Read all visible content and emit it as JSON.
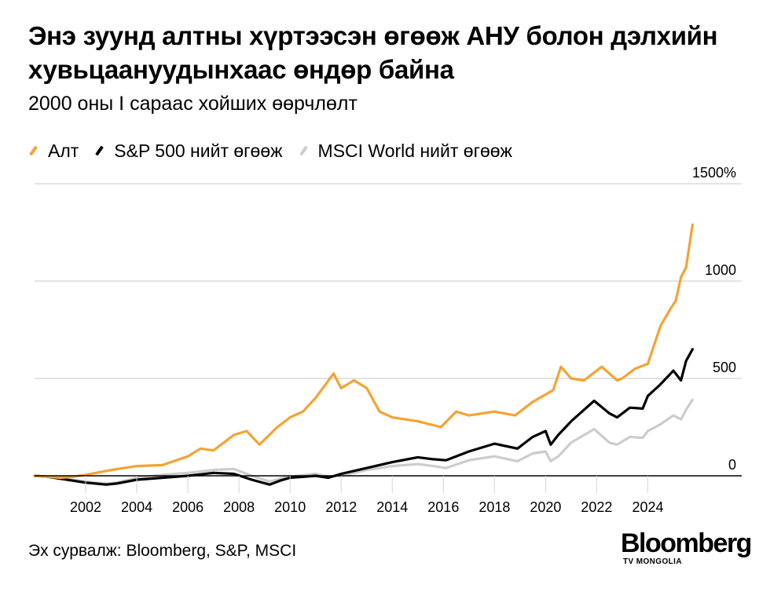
{
  "header": {
    "title": "Энэ зуунд алтны хүртээсэн өгөөж АНУ болон дэлхийн хувьцаануудынхаас өндөр байна",
    "subtitle": "2000 оны I сараас хойших өөрчлөлт"
  },
  "legend": {
    "items": [
      {
        "label": "Алт",
        "color": "#F5A332"
      },
      {
        "label": "S&P 500 нийт өгөөж",
        "color": "#000000"
      },
      {
        "label": "MSCI World нийт өгөөж",
        "color": "#CCCCCC"
      }
    ]
  },
  "footer": {
    "source": "Эх сурвалж: Bloomberg, S&P, MSCI",
    "logo_word": "Bloomberg",
    "logo_sub": "TV MONGOLIA"
  },
  "colors": {
    "gold": "#F5A332",
    "sp500": "#000000",
    "msci": "#CCCCCC",
    "grid": "#D4D4D4",
    "zero_line": "#000000"
  },
  "chart_data": {
    "type": "line",
    "title": "Энэ зуунд алтны хүртээсэн өгөөж АНУ болон дэлхийн хувьцаануудынхаас өндөр байна",
    "subtitle": "2000 оны I сараас хойших өөрчлөлт",
    "xlabel": "",
    "ylabel": "",
    "x_range": [
      2000,
      2025.8
    ],
    "ylim": [
      -100,
      1500
    ],
    "y_ticks": [
      {
        "value": 0,
        "label": "0"
      },
      {
        "value": 500,
        "label": "500"
      },
      {
        "value": 1000,
        "label": "1000"
      },
      {
        "value": 1500,
        "label": "1500%"
      }
    ],
    "x_ticks": [
      {
        "value": 2002,
        "label": "2002"
      },
      {
        "value": 2004,
        "label": "2004"
      },
      {
        "value": 2006,
        "label": "2006"
      },
      {
        "value": 2008,
        "label": "2008"
      },
      {
        "value": 2010,
        "label": "2010"
      },
      {
        "value": 2012,
        "label": "2012"
      },
      {
        "value": 2014,
        "label": "2014"
      },
      {
        "value": 2016,
        "label": "2016"
      },
      {
        "value": 2018,
        "label": "2018"
      },
      {
        "value": 2020,
        "label": "2020"
      },
      {
        "value": 2022,
        "label": "2022"
      },
      {
        "value": 2024,
        "label": "2024"
      }
    ],
    "grid": "horizontal",
    "legend_position": "top-left",
    "series": [
      {
        "name": "MSCI World нийт өгөөж",
        "color": "#CCCCCC",
        "x": [
          2000,
          2000.5,
          2001,
          2001.5,
          2002,
          2002.8,
          2003.2,
          2004,
          2005,
          2006,
          2007,
          2007.8,
          2008.5,
          2009.2,
          2009.6,
          2010,
          2011,
          2011.5,
          2012,
          2013,
          2014,
          2015,
          2015.6,
          2016.1,
          2017,
          2018,
          2018.9,
          2019.5,
          2020,
          2020.2,
          2020.5,
          2021,
          2021.9,
          2022.5,
          2022.8,
          2023.3,
          2023.8,
          2024,
          2024.5,
          2025,
          2025.3,
          2025.5,
          2025.75
        ],
        "values": [
          0,
          -5,
          -15,
          -20,
          -30,
          -40,
          -35,
          -10,
          5,
          15,
          30,
          35,
          0,
          -30,
          -15,
          -5,
          10,
          -5,
          0,
          30,
          50,
          60,
          50,
          40,
          80,
          100,
          75,
          115,
          125,
          75,
          100,
          170,
          240,
          170,
          160,
          200,
          195,
          230,
          265,
          310,
          290,
          340,
          390
        ]
      },
      {
        "name": "S&P 500 нийт өгөөж",
        "color": "#000000",
        "x": [
          2000,
          2000.5,
          2001,
          2001.5,
          2002,
          2002.8,
          2003.2,
          2004,
          2005,
          2006,
          2007,
          2007.8,
          2008.5,
          2009.2,
          2009.6,
          2010,
          2011,
          2011.5,
          2012,
          2013,
          2014,
          2015,
          2015.6,
          2016.1,
          2017,
          2018,
          2018.9,
          2019.5,
          2020,
          2020.2,
          2020.5,
          2021,
          2021.9,
          2022.5,
          2022.8,
          2023.3,
          2023.8,
          2024,
          2024.5,
          2025,
          2025.3,
          2025.5,
          2025.75
        ],
        "values": [
          0,
          -5,
          -15,
          -25,
          -35,
          -45,
          -40,
          -20,
          -10,
          0,
          15,
          10,
          -20,
          -45,
          -25,
          -10,
          0,
          -10,
          10,
          40,
          70,
          95,
          85,
          80,
          125,
          165,
          140,
          200,
          230,
          160,
          210,
          280,
          385,
          320,
          300,
          350,
          345,
          410,
          470,
          540,
          490,
          590,
          650
        ]
      },
      {
        "name": "Алт",
        "color": "#F5A332",
        "x": [
          2000,
          2000.5,
          2001,
          2001.5,
          2002,
          2003,
          2004,
          2005,
          2006,
          2006.5,
          2007,
          2007.8,
          2008.3,
          2008.8,
          2009.5,
          2010,
          2010.5,
          2011,
          2011.7,
          2012,
          2012.5,
          2013,
          2013.5,
          2014,
          2015,
          2015.9,
          2016.5,
          2017,
          2018,
          2018.8,
          2019.5,
          2020.3,
          2020.6,
          2021,
          2021.5,
          2022.2,
          2022.8,
          2023,
          2023.5,
          2024,
          2024.5,
          2024.9,
          2025.1,
          2025.3,
          2025.5,
          2025.75
        ],
        "values": [
          0,
          -5,
          -10,
          -5,
          5,
          30,
          50,
          55,
          100,
          140,
          130,
          210,
          230,
          160,
          250,
          300,
          330,
          400,
          525,
          450,
          490,
          450,
          330,
          300,
          280,
          250,
          330,
          310,
          330,
          310,
          380,
          440,
          560,
          500,
          490,
          560,
          490,
          500,
          550,
          575,
          770,
          860,
          900,
          1020,
          1070,
          1290
        ]
      }
    ]
  }
}
